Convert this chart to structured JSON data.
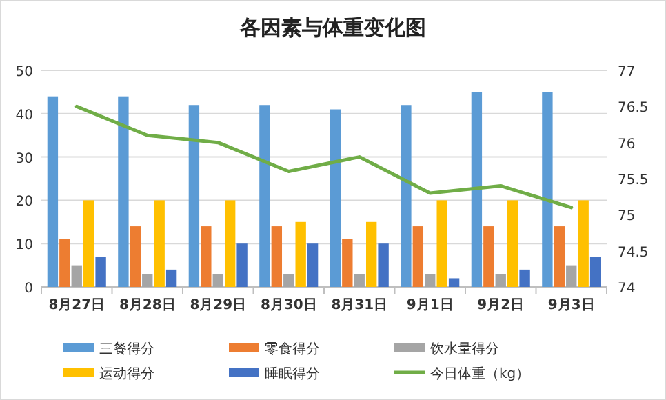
{
  "chart_data": {
    "type": "bar",
    "title": "各因素与体重变化图",
    "categories": [
      "8月27日",
      "8月28日",
      "8月29日",
      "8月30日",
      "8月31日",
      "9月1日",
      "9月2日",
      "9月3日"
    ],
    "series": [
      {
        "name": "三餐得分",
        "color": "#5b9bd5",
        "values": [
          44,
          44,
          42,
          42,
          41,
          42,
          45,
          45
        ]
      },
      {
        "name": "零食得分",
        "color": "#ed7d31",
        "values": [
          11,
          14,
          14,
          14,
          11,
          14,
          14,
          14
        ]
      },
      {
        "name": "饮水量得分",
        "color": "#a5a5a5",
        "values": [
          5,
          3,
          3,
          3,
          3,
          3,
          3,
          5
        ]
      },
      {
        "name": "运动得分",
        "color": "#ffc000",
        "values": [
          20,
          20,
          20,
          15,
          15,
          20,
          20,
          20
        ]
      },
      {
        "name": "睡眠得分",
        "color": "#4472c4",
        "values": [
          7,
          4,
          10,
          10,
          10,
          2,
          4,
          7
        ]
      },
      {
        "name": "今日体重（kg）",
        "color": "#70ad47",
        "type": "line",
        "axis": "y2",
        "values": [
          76.5,
          76.1,
          76.0,
          75.6,
          75.8,
          75.3,
          75.4,
          75.1
        ]
      }
    ],
    "ylim": [
      0,
      50
    ],
    "yticks": [
      0,
      10,
      20,
      30,
      40,
      50
    ],
    "y2lim": [
      74,
      77
    ],
    "y2ticks": [
      74,
      74.5,
      75,
      75.5,
      76,
      76.5,
      77
    ],
    "grid": "y",
    "legend": "bottom",
    "marker": "none"
  }
}
